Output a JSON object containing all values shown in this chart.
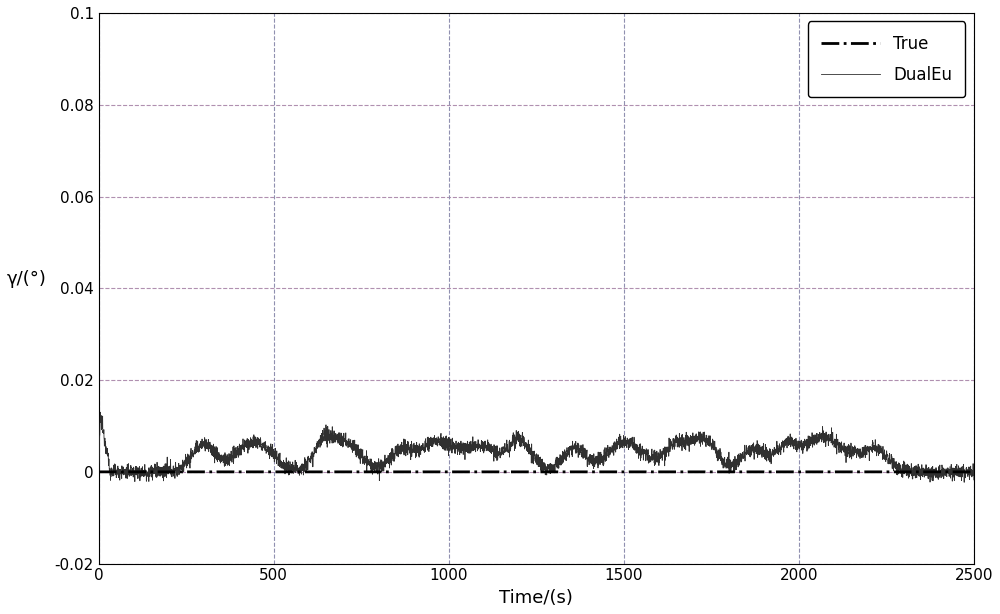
{
  "title": "",
  "xlabel": "Time/(s)",
  "ylabel": "γ/(°)",
  "xlim": [
    0,
    2500
  ],
  "ylim": [
    -0.02,
    0.1
  ],
  "yticks": [
    -0.02,
    0,
    0.02,
    0.04,
    0.06,
    0.08,
    0.1
  ],
  "xticks": [
    0,
    500,
    1000,
    1500,
    2000,
    2500
  ],
  "grid_color_h": "#b090b0",
  "grid_color_v": "#9090b0",
  "grid_linestyle": "--",
  "true_color": "#000000",
  "dualeu_color": "#303030",
  "bg_color": "#ffffff",
  "legend_entries": [
    "True",
    "DualEu"
  ],
  "n_points": 5000,
  "spike_value": 0.012,
  "true_value": 0.0
}
